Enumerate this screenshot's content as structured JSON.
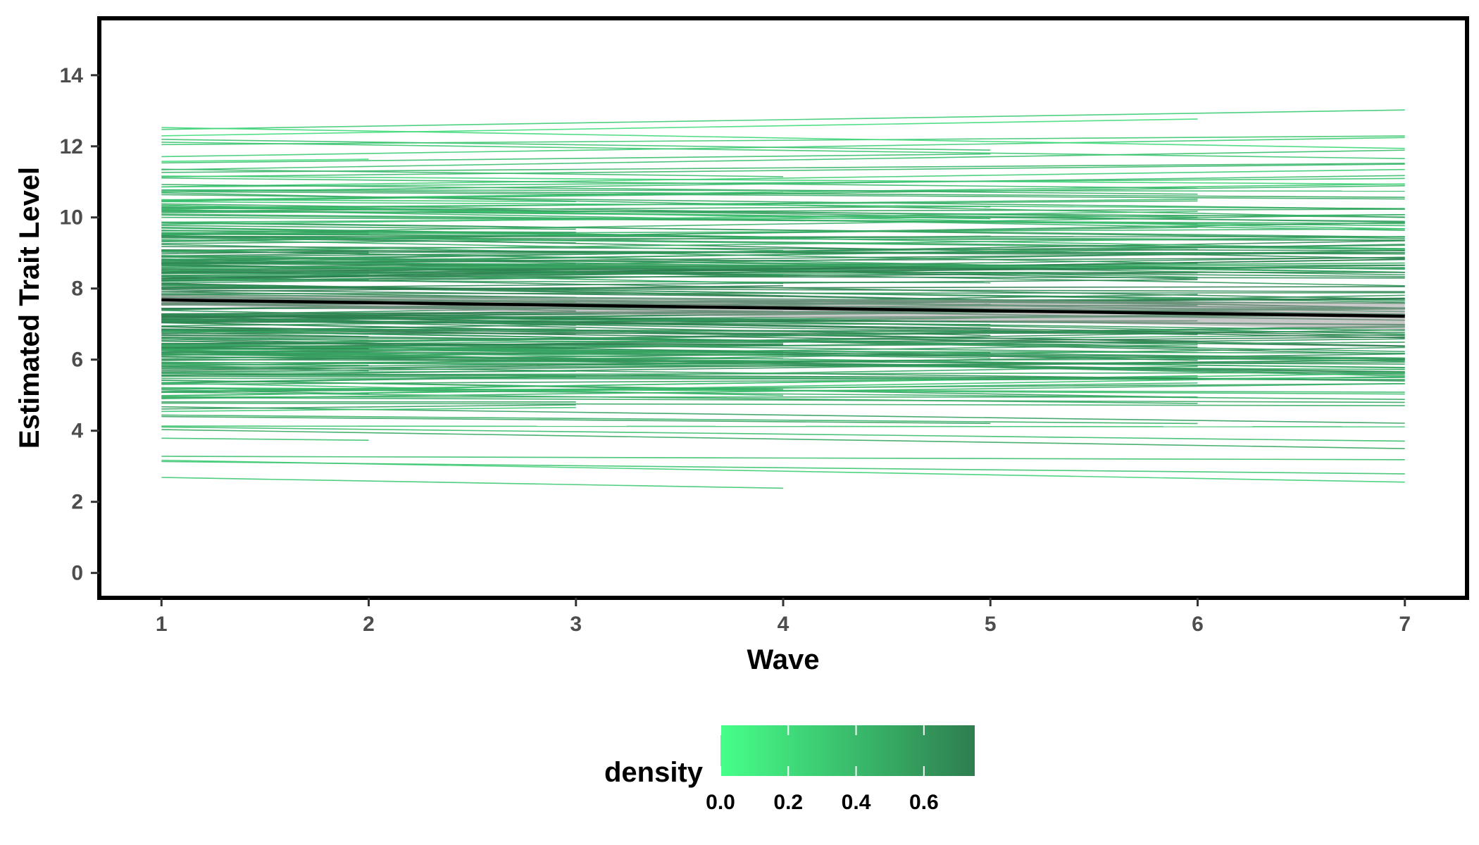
{
  "chart_data": {
    "type": "line",
    "xlabel": "Wave",
    "ylabel": "Estimated Trait Level",
    "x_ticks": [
      1,
      2,
      3,
      4,
      5,
      6,
      7
    ],
    "y_ticks": [
      0,
      2,
      4,
      6,
      8,
      10,
      12,
      14
    ],
    "xlim": [
      0.7,
      7.3
    ],
    "ylim": [
      -0.7,
      15.6
    ],
    "grid": false,
    "mean_trend": {
      "x": [
        1,
        7
      ],
      "y": [
        7.68,
        7.22
      ],
      "color": "#000000",
      "band": [
        0.15,
        0.38
      ]
    },
    "individual_trajectories": {
      "count": 300,
      "y_range_wave1": [
        2.4,
        13.4
      ],
      "slope_range_per_wave": [
        -0.12,
        0.1
      ],
      "end_waves": [
        2,
        3,
        4,
        5,
        6,
        7
      ],
      "color_by": "density"
    },
    "legend": {
      "title": "density",
      "placement": "bottom",
      "min": 0,
      "max": 0.75,
      "ticks": [
        0.0,
        0.2,
        0.4,
        0.6
      ],
      "tick_labels": [
        "0.0",
        "0.2",
        "0.4",
        "0.6"
      ],
      "color_low": "#46ff8a",
      "color_high": "#2e7d4f"
    }
  }
}
